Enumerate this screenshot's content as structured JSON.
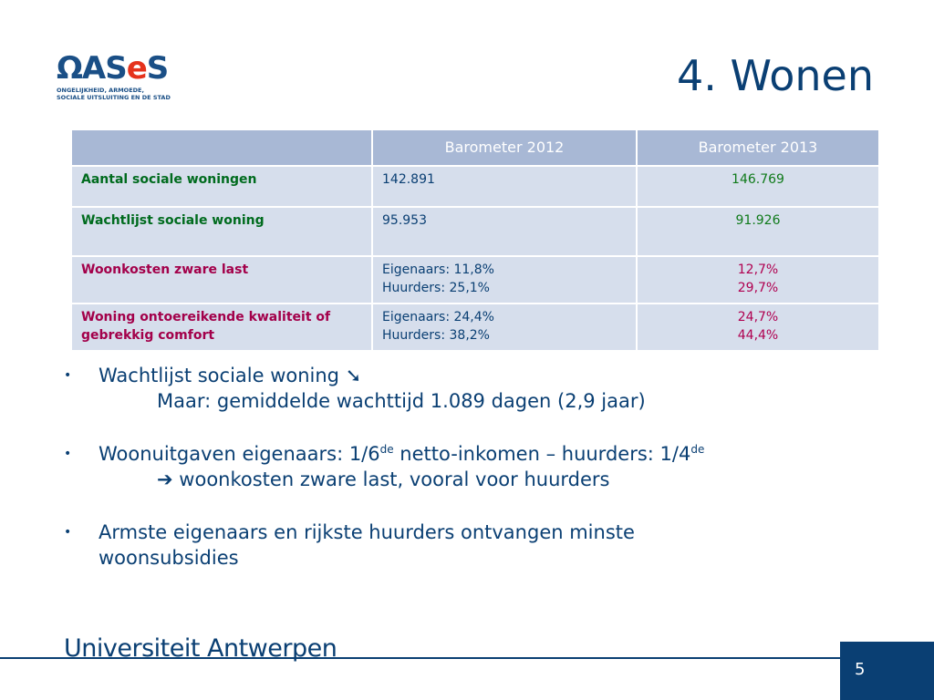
{
  "logo": {
    "word_part1": "ΩAS",
    "word_part2": "e",
    "word_part3": "S",
    "sub_line1": "ONGELIJKHEID, ARMOEDE,",
    "sub_line2": "SOCIALE UITSLUITING EN DE STAD"
  },
  "title": "4. Wonen",
  "table": {
    "headers": [
      "",
      "Barometer 2012",
      "Barometer 2013"
    ],
    "rows": [
      {
        "label": "Aantal sociale woningen",
        "v2012": [
          "142.891"
        ],
        "v2013": [
          "146.769"
        ]
      },
      {
        "label": "Wachtlijst sociale woning",
        "v2012": [
          "95.953"
        ],
        "v2013": [
          "91.926"
        ]
      },
      {
        "label": "Woonkosten zware last",
        "v2012": [
          "Eigenaars: 11,8%",
          "Huurders: 25,1%"
        ],
        "v2013": [
          "12,7%",
          "29,7%"
        ]
      },
      {
        "label": "Woning ontoereikende kwaliteit of gebrekkig comfort",
        "v2012": [
          "Eigenaars: 24,4%",
          "Huurders: 38,2%"
        ],
        "v2013": [
          "24,7%",
          "44,4%"
        ]
      }
    ]
  },
  "bullets": {
    "b1_text": "Wachtlijst sociale woning",
    "b1_sub": "Maar: gemiddelde wachttijd 1.089 dagen (2,9 jaar)",
    "b2_part1": "Woonuitgaven eigenaars: 1/6",
    "b2_sup1": "de",
    "b2_part2": " netto-inkomen – huurders: 1/4",
    "b2_sup2": "de",
    "b2_sub": "woonkosten zware last, vooral voor huurders",
    "b3_line1": "Armste eigenaars en rijkste huurders ontvangen minste",
    "b3_line2": "woonsubsidies",
    "bullet_glyph": "•"
  },
  "icons": {
    "arrow_down_right": "➘",
    "arrow_right": "➔"
  },
  "footer": {
    "university": "Universiteit Antwerpen",
    "page": "5"
  }
}
